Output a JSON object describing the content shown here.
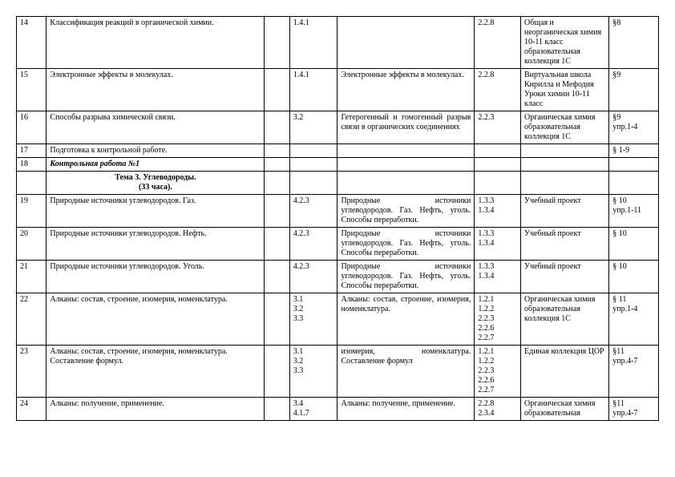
{
  "rows": [
    {
      "num": "14",
      "topic": "Классификация реакций в органической химии.",
      "c3": "",
      "code1": "1.4.1",
      "desc": "",
      "code2": "2.2.8",
      "res": "Общая и неорганическая химия 10-11 класс образовательная коллекция 1С",
      "ref": "§8"
    },
    {
      "num": "15",
      "topic": "Электронные эффекты в молекулах.",
      "c3": "",
      "code1": "1.4.1",
      "desc": "Электронные эффекты в молекулах.",
      "code2": "2.2.8",
      "res": "Виртуальная школа Кирилла и Мефодия Уроки химии 10-11 класс",
      "ref": "§9"
    },
    {
      "num": "16",
      "topic": "Способы разрыва химической связи.",
      "c3": "",
      "code1": "3.2",
      "desc": "Гетерогенный и гомогенный разрыв связи в органических соединениях",
      "code2": "2.2.3",
      "res": "Органическая химия образовательная коллекция 1С",
      "ref": "§9\nупр.1-4"
    },
    {
      "num": "17",
      "topic": "Подготовка к контрольной работе.",
      "c3": "",
      "code1": "",
      "desc": "",
      "code2": "",
      "res": "",
      "ref": "§ 1-9"
    },
    {
      "num": "18",
      "topic": "Контрольная работа №1",
      "topicClass": "bold-italic",
      "c3": "",
      "code1": "",
      "desc": "",
      "code2": "",
      "res": "",
      "ref": ""
    },
    {
      "num": "",
      "topic": "Тема 3.  Углеводороды.\n(33 часа).",
      "topicClass": "bold center",
      "c3": "",
      "code1": "",
      "desc": "",
      "code2": "",
      "res": "",
      "ref": ""
    },
    {
      "num": "19",
      "topic": "Природные источники углеводородов. Газ.",
      "c3": "",
      "code1": "4.2.3",
      "desc": "Природные источники углеводородов. Газ. Нефть, уголь. Способы переработки.",
      "code2": "1.3.3\n1.3.4",
      "res": "Учебный проект",
      "ref": "§ 10\nупр.1-11"
    },
    {
      "num": "20",
      "topic": "Природные источники углеводородов. Нефть.",
      "c3": "",
      "code1": "4.2.3",
      "desc": "Природные источники углеводородов. Газ. Нефть, уголь. Способы переработки.",
      "code2": "1.3.3\n1.3.4",
      "res": "Учебный проект",
      "ref": "§ 10"
    },
    {
      "num": "21",
      "topic": "Природные источники углеводородов. Уголь.",
      "c3": "",
      "code1": "4.2.3",
      "desc": "Природные источники углеводородов. Газ. Нефть, уголь. Способы переработки.",
      "code2": "1.3.3\n1.3.4",
      "res": "Учебный проект",
      "ref": "§ 10"
    },
    {
      "num": "22",
      "topic": "Алканы: состав, строение, изомерия, номенклатура.",
      "c3": "",
      "code1": "3.1\n3.2\n3.3",
      "desc": "Алканы: состав, строение, изомерия, номенклатура.",
      "code2": "1.2.1\n1.2.2\n2.2.3\n2.2.6\n2.2.7",
      "res": "Органическая химия образовательная коллекция 1С",
      "ref": "§ 11\nупр.1-4"
    },
    {
      "num": "23",
      "topic": "Алканы: состав, строение, изомерия, номенклатура. Составление формул.",
      "c3": "",
      "code1": "3.1\n3.2\n3.3",
      "desc": "изомерия, номенклатура. Составление формул",
      "code2": "1.2.1\n1.2.2\n2.2.3\n2.2.6\n2.2.7",
      "res": "Единая коллекция ЦОР",
      "ref": "§11\nупр.4-7"
    },
    {
      "num": "24",
      "topic": "Алканы: получение, применение.",
      "c3": "",
      "code1": "3.4\n4.1.7",
      "desc": "Алканы: получение, применение.",
      "code2": "2.2.8\n2.3.4",
      "res": "Органическая химия образовательная",
      "ref": "§11\nупр.4-7"
    }
  ]
}
